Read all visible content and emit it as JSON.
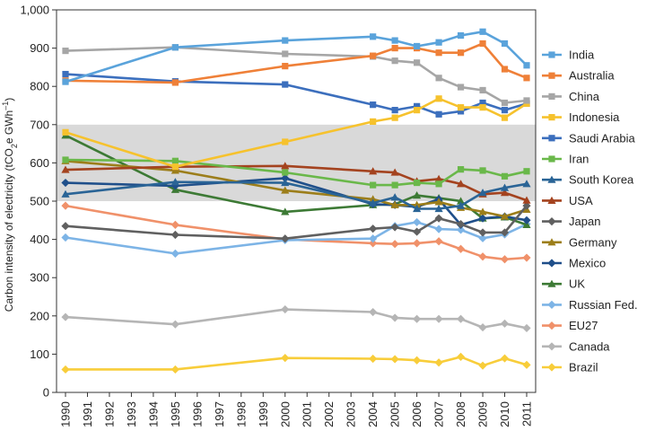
{
  "chart_data": {
    "type": "line",
    "ylabel_main": "Carbon intensity of electricity (tCO",
    "ylabel_sub1": "2",
    "ylabel_mid": "e GWh",
    "ylabel_sup": "–1",
    "ylabel_end": ")",
    "ylim": [
      0,
      1000
    ],
    "yticks": [
      "0",
      "100",
      "200",
      "300",
      "400",
      "500",
      "600",
      "700",
      "800",
      "900",
      "1,000"
    ],
    "xticks": [
      "1990",
      "1991",
      "1992",
      "1993",
      "1994",
      "1995",
      "1996",
      "1997",
      "1998",
      "1999",
      "2000",
      "2001",
      "2002",
      "2003",
      "2004",
      "2005",
      "2006",
      "2007",
      "2008",
      "2009",
      "2010",
      "2011"
    ],
    "band": [
      500,
      700
    ],
    "band_color": "#d9d9d9",
    "grid": false,
    "legend_position": "right",
    "series": [
      {
        "name": "India",
        "color": "#5aa3db",
        "marker": "square",
        "x": [
          1990,
          1995,
          2000,
          2004,
          2005,
          2006,
          2007,
          2008,
          2009,
          2010,
          2011
        ],
        "y": [
          812,
          902,
          920,
          930,
          920,
          905,
          915,
          933,
          943,
          912,
          855
        ]
      },
      {
        "name": "Australia",
        "color": "#ef8038",
        "marker": "square",
        "x": [
          1990,
          1995,
          2000,
          2004,
          2005,
          2006,
          2007,
          2008,
          2009,
          2010,
          2011
        ],
        "y": [
          815,
          810,
          853,
          880,
          900,
          900,
          888,
          888,
          912,
          845,
          822
        ]
      },
      {
        "name": "China",
        "color": "#a6a6a6",
        "marker": "square",
        "x": [
          1990,
          1995,
          2000,
          2004,
          2005,
          2006,
          2007,
          2008,
          2009,
          2010,
          2011
        ],
        "y": [
          893,
          902,
          885,
          878,
          867,
          862,
          822,
          798,
          790,
          757,
          763
        ]
      },
      {
        "name": "Indonesia",
        "color": "#f6c22d",
        "marker": "square",
        "x": [
          1990,
          1995,
          2000,
          2004,
          2005,
          2006,
          2007,
          2008,
          2009,
          2010,
          2011
        ],
        "y": [
          680,
          590,
          655,
          708,
          718,
          738,
          768,
          745,
          745,
          718,
          755
        ]
      },
      {
        "name": "Saudi Arabia",
        "color": "#3c6fbd",
        "marker": "square",
        "x": [
          1990,
          1995,
          2000,
          2004,
          2005,
          2006,
          2007,
          2008,
          2009,
          2010,
          2011
        ],
        "y": [
          832,
          813,
          805,
          752,
          738,
          748,
          727,
          735,
          757,
          738,
          755
        ]
      },
      {
        "name": "Iran",
        "color": "#6ab84a",
        "marker": "square",
        "x": [
          1990,
          1995,
          2000,
          2004,
          2005,
          2006,
          2007,
          2008,
          2009,
          2010,
          2011
        ],
        "y": [
          608,
          605,
          575,
          542,
          542,
          548,
          545,
          583,
          580,
          565,
          578
        ]
      },
      {
        "name": "South Korea",
        "color": "#2a6496",
        "marker": "triangle",
        "x": [
          1990,
          1995,
          2000,
          2004,
          2005,
          2006,
          2007,
          2008,
          2009,
          2010,
          2011
        ],
        "y": [
          518,
          550,
          548,
          495,
          510,
          480,
          480,
          488,
          522,
          535,
          545
        ]
      },
      {
        "name": "USA",
        "color": "#a4431f",
        "marker": "triangle",
        "x": [
          1990,
          1995,
          2000,
          2004,
          2005,
          2006,
          2007,
          2008,
          2009,
          2010,
          2011
        ],
        "y": [
          582,
          590,
          592,
          578,
          575,
          552,
          558,
          545,
          518,
          522,
          502
        ]
      },
      {
        "name": "Japan",
        "color": "#606060",
        "marker": "diamond",
        "x": [
          1990,
          1995,
          2000,
          2004,
          2005,
          2006,
          2007,
          2008,
          2009,
          2010,
          2011
        ],
        "y": [
          435,
          412,
          402,
          428,
          432,
          420,
          455,
          440,
          418,
          418,
          488
        ]
      },
      {
        "name": "Germany",
        "color": "#9c7e1a",
        "marker": "triangle",
        "x": [
          1990,
          1995,
          2000,
          2004,
          2005,
          2006,
          2007,
          2008,
          2009,
          2010,
          2011
        ],
        "y": [
          605,
          580,
          528,
          505,
          490,
          490,
          498,
          483,
          472,
          460,
          478
        ]
      },
      {
        "name": "Mexico",
        "color": "#1f4f8a",
        "marker": "diamond",
        "x": [
          1990,
          1995,
          2000,
          2004,
          2005,
          2006,
          2007,
          2008,
          2009,
          2010,
          2011
        ],
        "y": [
          548,
          540,
          560,
          492,
          490,
          485,
          505,
          438,
          455,
          460,
          450
        ]
      },
      {
        "name": "UK",
        "color": "#3d7a35",
        "marker": "triangle",
        "x": [
          1990,
          1995,
          2000,
          2004,
          2005,
          2006,
          2007,
          2008,
          2009,
          2010,
          2011
        ],
        "y": [
          672,
          530,
          472,
          490,
          492,
          515,
          508,
          500,
          455,
          458,
          438
        ]
      },
      {
        "name": "Russian Fed.",
        "color": "#7db4e6",
        "marker": "diamond",
        "x": [
          1990,
          1995,
          2000,
          2004,
          2005,
          2006,
          2007,
          2008,
          2009,
          2010,
          2011
        ],
        "y": [
          405,
          363,
          398,
          402,
          435,
          445,
          427,
          425,
          403,
          413,
          440
        ]
      },
      {
        "name": "EU27",
        "color": "#f0916a",
        "marker": "diamond",
        "x": [
          1990,
          1995,
          2000,
          2004,
          2005,
          2006,
          2007,
          2008,
          2009,
          2010,
          2011
        ],
        "y": [
          488,
          438,
          400,
          390,
          388,
          390,
          395,
          375,
          355,
          348,
          352
        ]
      },
      {
        "name": "Canada",
        "color": "#b5b5b5",
        "marker": "diamond",
        "x": [
          1990,
          1995,
          2000,
          2004,
          2005,
          2006,
          2007,
          2008,
          2009,
          2010,
          2011
        ],
        "y": [
          197,
          178,
          217,
          210,
          195,
          192,
          192,
          192,
          170,
          180,
          168
        ]
      },
      {
        "name": "Brazil",
        "color": "#f8cd3a",
        "marker": "diamond",
        "x": [
          1990,
          1995,
          2000,
          2004,
          2005,
          2006,
          2007,
          2008,
          2009,
          2010,
          2011
        ],
        "y": [
          60,
          60,
          90,
          88,
          87,
          84,
          78,
          93,
          70,
          89,
          72
        ]
      }
    ]
  }
}
